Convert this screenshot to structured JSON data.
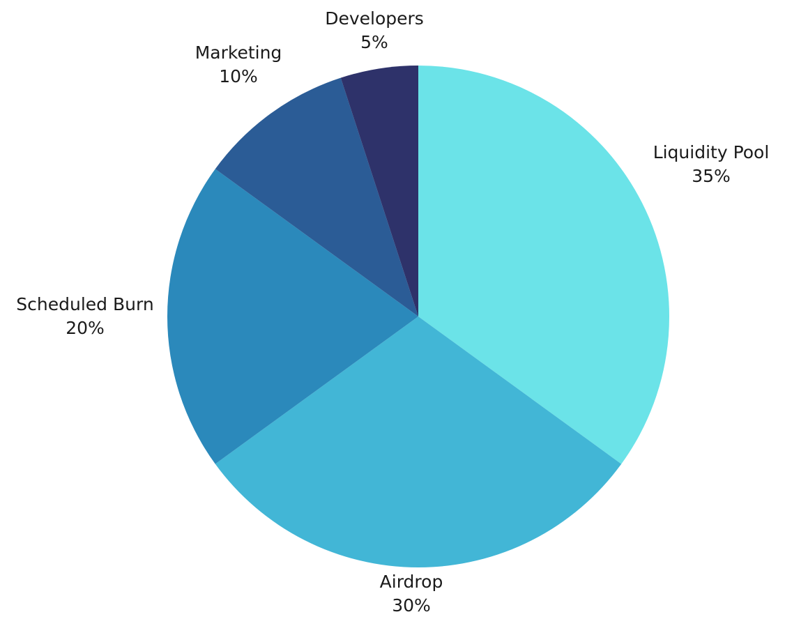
{
  "chart_data": {
    "type": "pie",
    "title": "",
    "categories": [
      "Liquidity Pool",
      "Airdrop",
      "Scheduled Burn",
      "Marketing",
      "Developers"
    ],
    "values": [
      35,
      30,
      20,
      10,
      5
    ],
    "value_labels": [
      "35%",
      "30%",
      "20%",
      "10%",
      "5%"
    ],
    "unit": "%",
    "start_angle": "12 o'clock",
    "direction": "clockwise",
    "legend": "none",
    "colors": [
      "#6be3e8",
      "#42b6d6",
      "#2b89bb",
      "#2b5c96",
      "#2e326a"
    ]
  }
}
